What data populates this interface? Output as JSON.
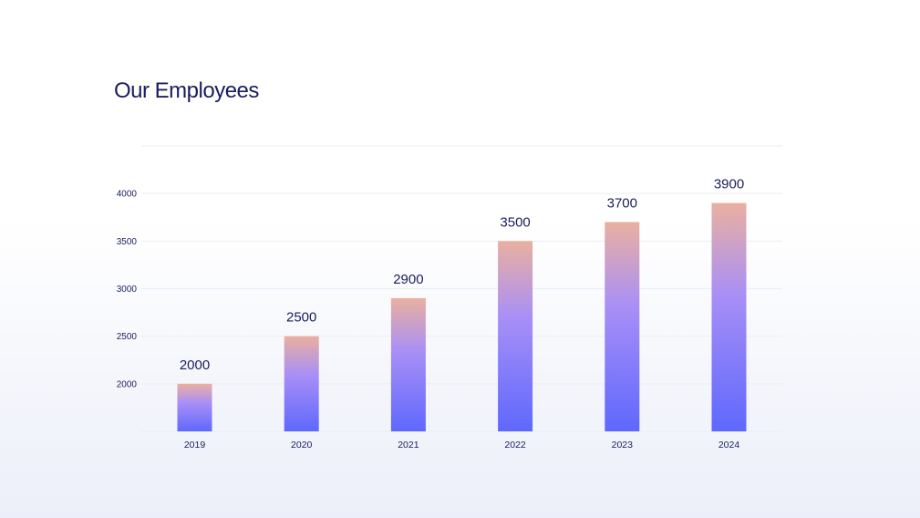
{
  "page": {
    "title": "Our Employees"
  },
  "chart_data": {
    "type": "bar",
    "title": "Our Employees",
    "categories": [
      "2019",
      "2020",
      "2021",
      "2022",
      "2023",
      "2024"
    ],
    "values": [
      2000,
      2500,
      2900,
      3500,
      3700,
      3900
    ],
    "yticks": [
      2000,
      2500,
      3000,
      3500,
      4000
    ],
    "ylim": [
      1500,
      4500
    ],
    "grid": true,
    "data_labels": true,
    "colors": {
      "bar_top": "#eab0a0",
      "bar_mid": "#a98ff6",
      "bar_bottom": "#5e68fd",
      "text": "#1b1d5c",
      "grid": "#eceef4"
    }
  }
}
